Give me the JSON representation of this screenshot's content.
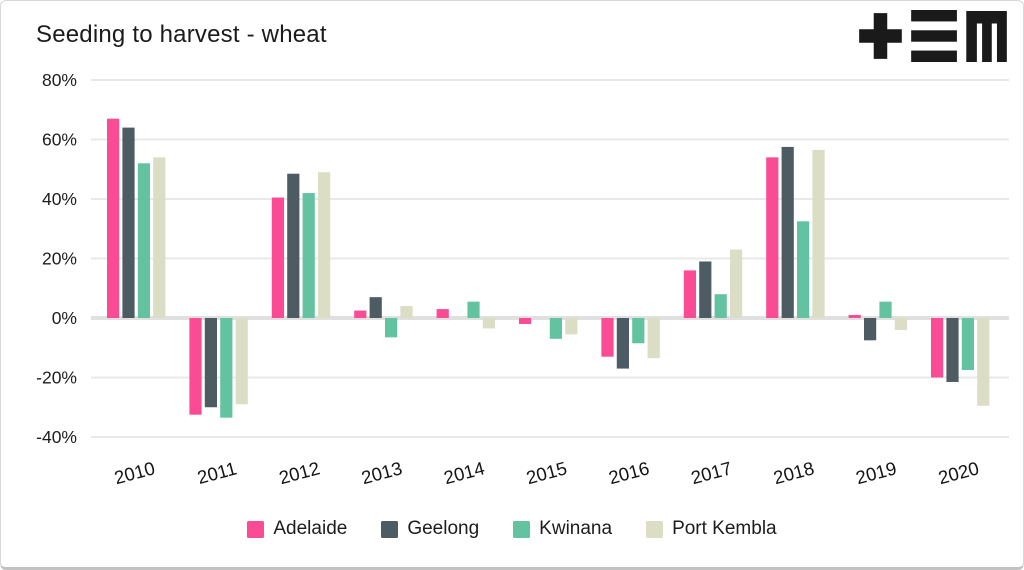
{
  "header": {
    "title": "Seeding to harvest - wheat",
    "logo": "tem-logo"
  },
  "chart_data": {
    "type": "bar",
    "title": "Seeding to harvest - wheat",
    "categories": [
      "2010",
      "2011",
      "2012",
      "2013",
      "2014",
      "2015",
      "2016",
      "2017",
      "2018",
      "2019",
      "2020"
    ],
    "series": [
      {
        "name": "Adelaide",
        "color": "#fa4b94",
        "values": [
          67,
          -32.5,
          40.5,
          2.5,
          3,
          -2,
          -13,
          16,
          54,
          1,
          -20
        ]
      },
      {
        "name": "Geelong",
        "color": "#4c5c62",
        "values": [
          64,
          -30,
          48.5,
          7,
          0,
          0,
          -17,
          19,
          57.5,
          -7.5,
          -21.5
        ]
      },
      {
        "name": "Kwinana",
        "color": "#63c3a1",
        "values": [
          52,
          -33.5,
          42,
          -6.5,
          5.5,
          -7,
          -8.5,
          8,
          32.5,
          5.5,
          -17.5
        ]
      },
      {
        "name": "Port Kembla",
        "color": "#dbddc4",
        "values": [
          54,
          -29,
          49,
          4,
          -3.5,
          -5.5,
          -13.5,
          23,
          56.5,
          -4,
          -29.5
        ]
      }
    ],
    "ylim": [
      -40,
      80
    ],
    "yticks": [
      {
        "v": 80,
        "label": "80%"
      },
      {
        "v": 60,
        "label": "60%"
      },
      {
        "v": 40,
        "label": "40%"
      },
      {
        "v": 20,
        "label": "20%"
      },
      {
        "v": 0,
        "label": "0%"
      },
      {
        "v": -20,
        "label": "-20%"
      },
      {
        "v": -40,
        "label": "-40%"
      }
    ],
    "grid": "horizontal",
    "legend_position": "bottom",
    "value_unit": "%"
  }
}
